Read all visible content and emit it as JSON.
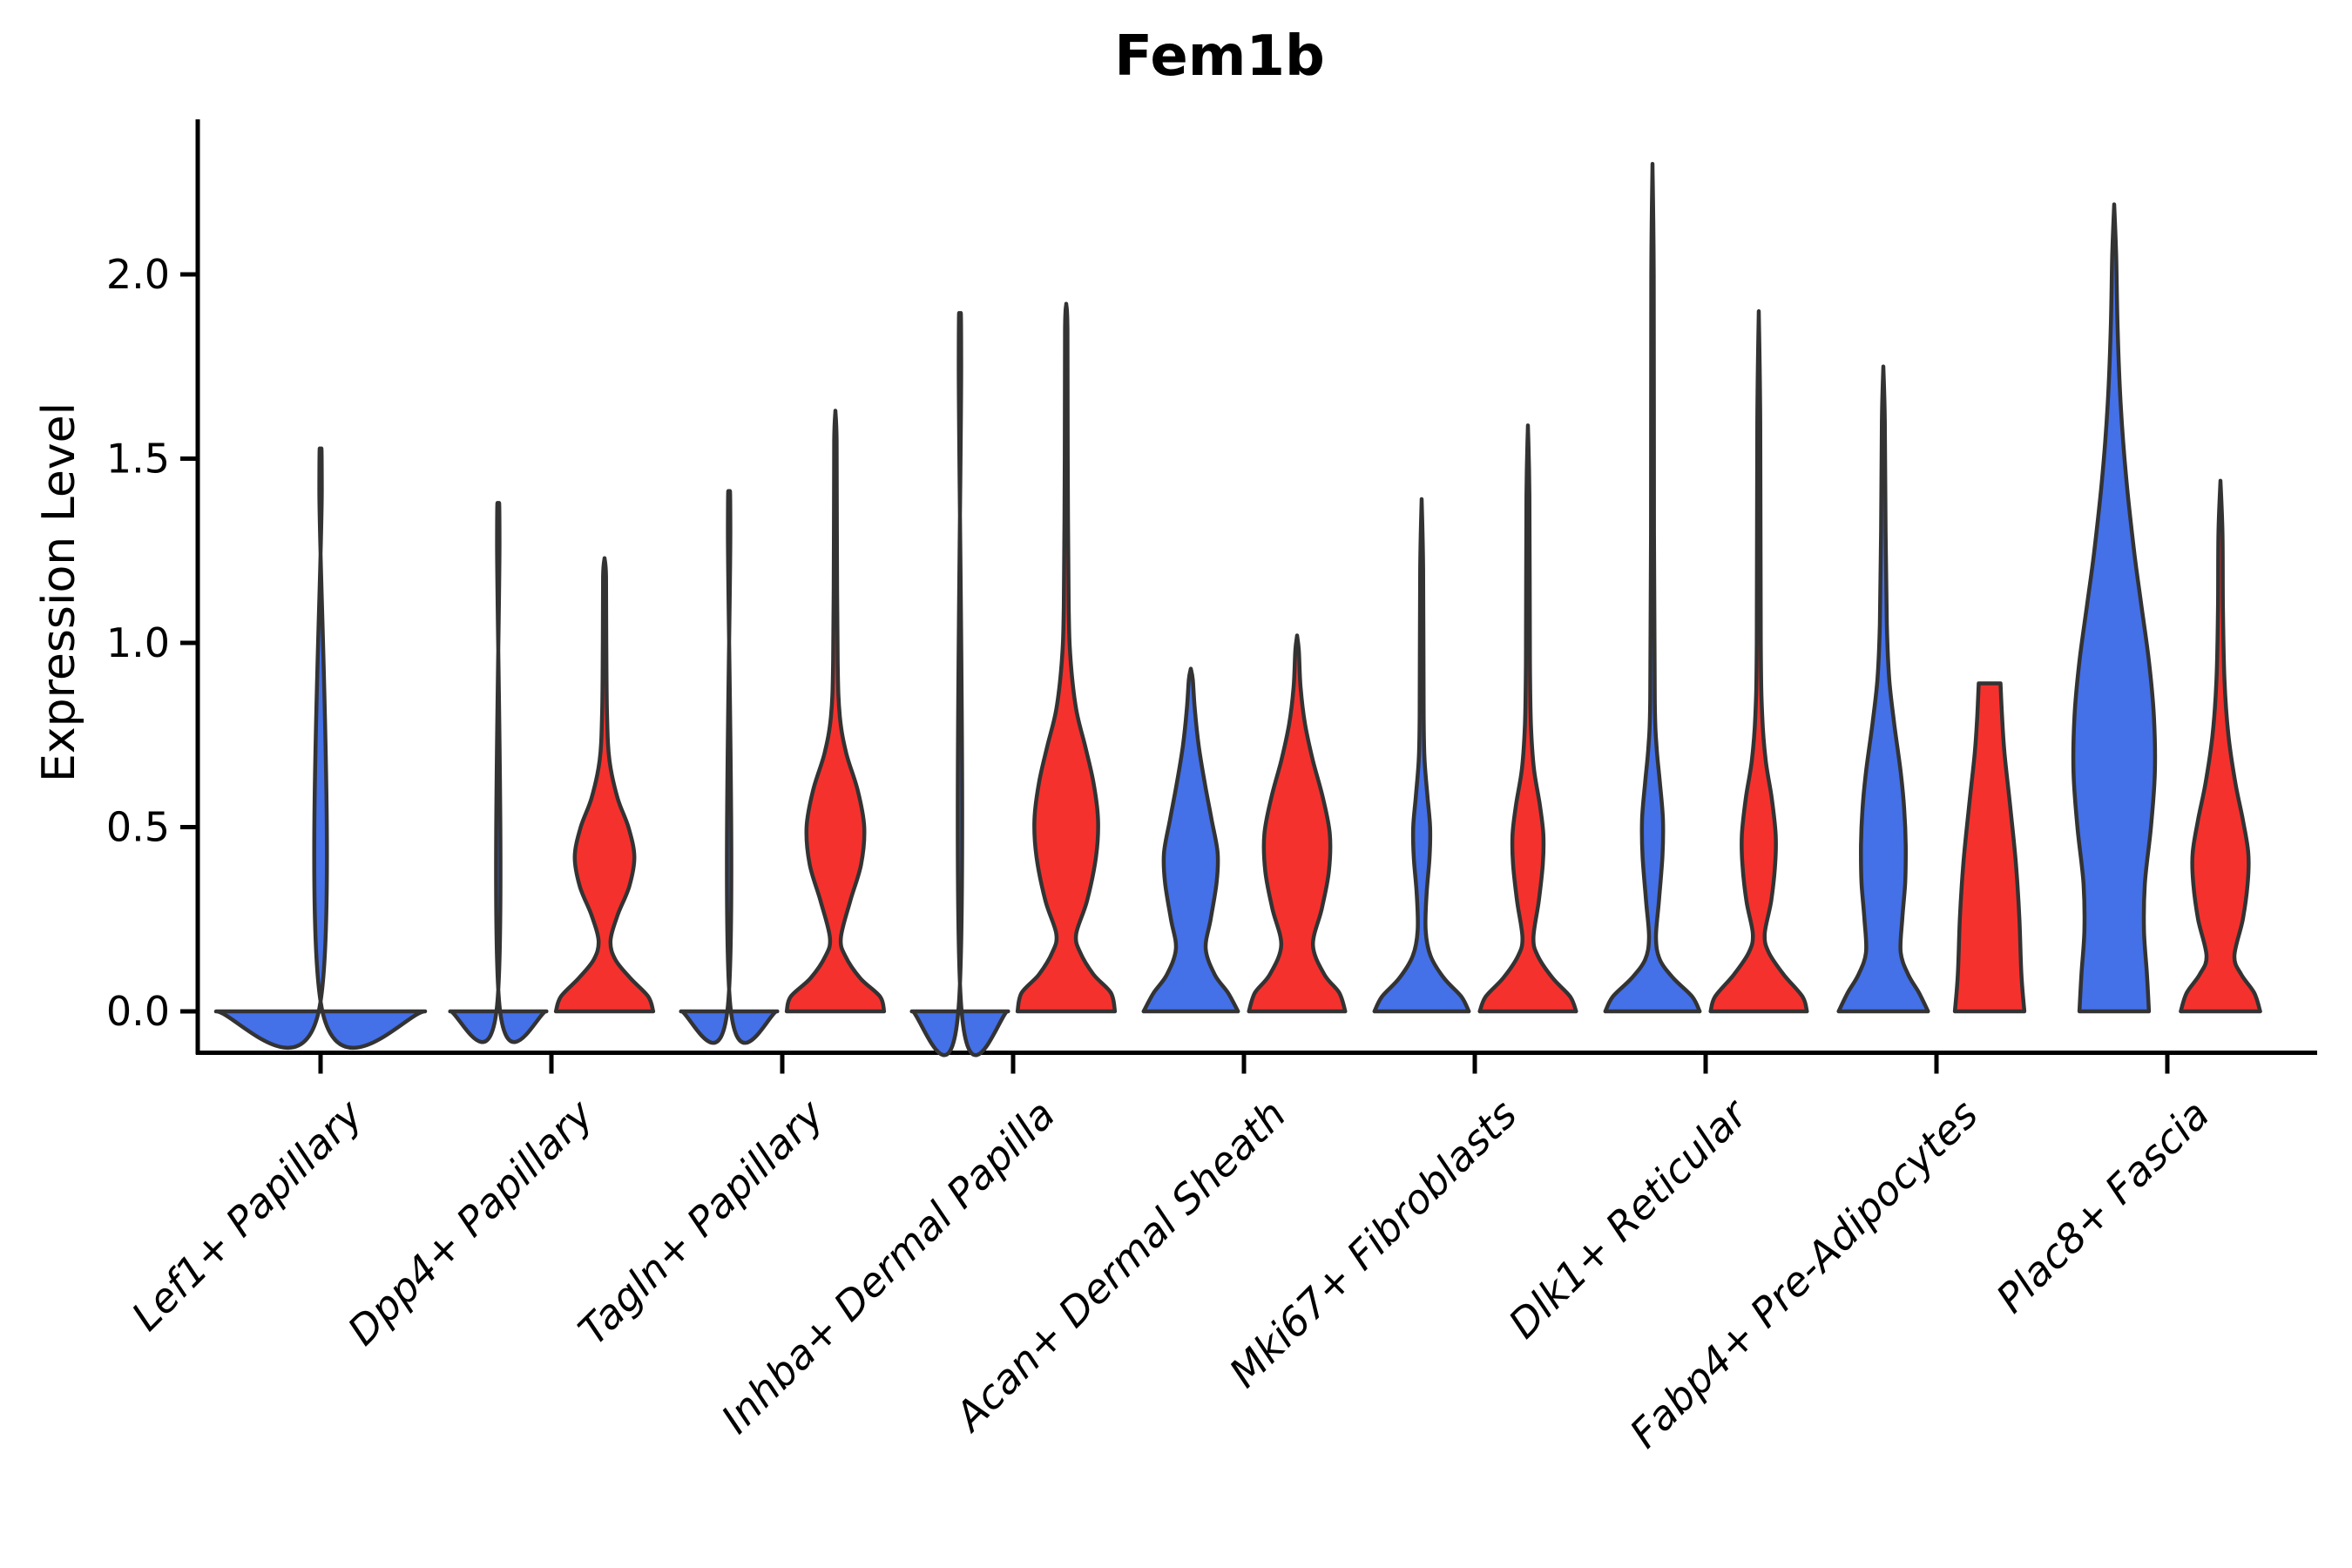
{
  "title": "Fem1b",
  "y_axis_label": "Expression Level",
  "colors": {
    "split_blue": "#4470E8",
    "split_red": "#F5312D",
    "violin_outline": "#333333",
    "axis": "#000000",
    "text": "#000000",
    "background": "#FFFFFF"
  },
  "chart_data": {
    "type": "violin",
    "title": "Fem1b",
    "xlabel": "",
    "ylabel": "Expression Level",
    "ylim": [
      0,
      2.42
    ],
    "yticks": [
      "0.0",
      "0.5",
      "1.0",
      "1.5",
      "2.0"
    ],
    "ytick_values": [
      0.0,
      0.5,
      1.0,
      1.5,
      2.0
    ],
    "grid": false,
    "legend": "none",
    "split_series": [
      {
        "name": "blue",
        "color": "#4470E8"
      },
      {
        "name": "red",
        "color": "#F5312D"
      }
    ],
    "categories": [
      "Lef1+ Papillary",
      "Dpp4+ Papillary",
      "Tagln+ Papillary",
      "Inhba+ Dermal Papilla",
      "Acan+ Dermal Sheath",
      "Mki67+ Fibroblasts",
      "Dlk1+ Reticular",
      "Fabp4+ Pre-Adipocytes",
      "Plac8+ Fascia"
    ],
    "max_expression": {
      "blue": [
        1.43,
        1.3,
        1.33,
        1.78,
        0.93,
        1.39,
        2.3,
        1.75,
        2.19
      ],
      "red": [
        null,
        1.23,
        1.63,
        1.92,
        1.02,
        1.59,
        1.9,
        0.89,
        1.44
      ]
    },
    "violins": [
      {
        "category": "Lef1+ Papillary",
        "blue": {
          "tip": 1.43,
          "full_width": true,
          "profile": [
            [
              0,
              1.0
            ],
            [
              0.008,
              0.012
            ],
            [
              1.42,
              0.012
            ],
            [
              1.43,
              0
            ]
          ]
        },
        "red": null
      },
      {
        "category": "Dpp4+ Papillary",
        "blue": {
          "tip": 1.3,
          "profile": [
            [
              0,
              0.97
            ],
            [
              0.015,
              0.025
            ],
            [
              1.28,
              0.025
            ],
            [
              1.3,
              0
            ]
          ]
        },
        "red": {
          "tip": 1.23,
          "profile": [
            [
              0,
              0.98
            ],
            [
              0.04,
              0.88
            ],
            [
              0.09,
              0.52
            ],
            [
              0.14,
              0.22
            ],
            [
              0.19,
              0.12
            ],
            [
              0.26,
              0.26
            ],
            [
              0.34,
              0.5
            ],
            [
              0.42,
              0.6
            ],
            [
              0.5,
              0.48
            ],
            [
              0.58,
              0.26
            ],
            [
              0.68,
              0.1
            ],
            [
              0.8,
              0.05
            ],
            [
              1.0,
              0.035
            ],
            [
              1.18,
              0.03
            ],
            [
              1.23,
              0
            ]
          ]
        }
      },
      {
        "category": "Tagln+ Papillary",
        "blue": {
          "tip": 1.33,
          "profile": [
            [
              0,
              0.97
            ],
            [
              0.015,
              0.025
            ],
            [
              1.31,
              0.025
            ],
            [
              1.33,
              0
            ]
          ]
        },
        "red": {
          "tip": 1.63,
          "profile": [
            [
              0,
              0.98
            ],
            [
              0.04,
              0.9
            ],
            [
              0.09,
              0.5
            ],
            [
              0.15,
              0.2
            ],
            [
              0.2,
              0.11
            ],
            [
              0.3,
              0.3
            ],
            [
              0.4,
              0.52
            ],
            [
              0.5,
              0.58
            ],
            [
              0.6,
              0.45
            ],
            [
              0.7,
              0.22
            ],
            [
              0.8,
              0.09
            ],
            [
              0.95,
              0.045
            ],
            [
              1.3,
              0.03
            ],
            [
              1.55,
              0.025
            ],
            [
              1.63,
              0
            ]
          ]
        }
      },
      {
        "category": "Inhba+ Dermal Papilla",
        "blue": {
          "tip": 1.78,
          "profile": [
            [
              0,
              0.97
            ],
            [
              0.015,
              0.025
            ],
            [
              1.76,
              0.025
            ],
            [
              1.78,
              0
            ]
          ]
        },
        "red": {
          "tip": 1.92,
          "profile": [
            [
              0,
              0.98
            ],
            [
              0.05,
              0.9
            ],
            [
              0.1,
              0.55
            ],
            [
              0.16,
              0.28
            ],
            [
              0.21,
              0.2
            ],
            [
              0.3,
              0.42
            ],
            [
              0.42,
              0.6
            ],
            [
              0.52,
              0.64
            ],
            [
              0.62,
              0.55
            ],
            [
              0.72,
              0.38
            ],
            [
              0.82,
              0.2
            ],
            [
              0.95,
              0.09
            ],
            [
              1.1,
              0.05
            ],
            [
              1.5,
              0.03
            ],
            [
              1.85,
              0.025
            ],
            [
              1.92,
              0
            ]
          ]
        }
      },
      {
        "category": "Acan+ Dermal Sheath",
        "blue": {
          "tip": 0.93,
          "profile": [
            [
              0,
              0.95
            ],
            [
              0.05,
              0.75
            ],
            [
              0.1,
              0.48
            ],
            [
              0.17,
              0.3
            ],
            [
              0.25,
              0.4
            ],
            [
              0.35,
              0.52
            ],
            [
              0.43,
              0.54
            ],
            [
              0.52,
              0.42
            ],
            [
              0.62,
              0.28
            ],
            [
              0.72,
              0.16
            ],
            [
              0.82,
              0.08
            ],
            [
              0.9,
              0.04
            ],
            [
              0.93,
              0
            ]
          ]
        },
        "red": {
          "tip": 1.02,
          "profile": [
            [
              0,
              0.97
            ],
            [
              0.05,
              0.85
            ],
            [
              0.1,
              0.55
            ],
            [
              0.18,
              0.32
            ],
            [
              0.28,
              0.5
            ],
            [
              0.38,
              0.64
            ],
            [
              0.48,
              0.66
            ],
            [
              0.58,
              0.52
            ],
            [
              0.68,
              0.32
            ],
            [
              0.78,
              0.16
            ],
            [
              0.88,
              0.07
            ],
            [
              0.98,
              0.035
            ],
            [
              1.02,
              0
            ]
          ]
        }
      },
      {
        "category": "Mki67+ Fibroblasts",
        "blue": {
          "tip": 1.39,
          "profile": [
            [
              0,
              0.95
            ],
            [
              0.04,
              0.8
            ],
            [
              0.09,
              0.45
            ],
            [
              0.15,
              0.18
            ],
            [
              0.22,
              0.08
            ],
            [
              0.32,
              0.1
            ],
            [
              0.42,
              0.16
            ],
            [
              0.5,
              0.17
            ],
            [
              0.58,
              0.12
            ],
            [
              0.68,
              0.06
            ],
            [
              0.8,
              0.04
            ],
            [
              1.2,
              0.03
            ],
            [
              1.39,
              0
            ]
          ]
        },
        "red": {
          "tip": 1.59,
          "profile": [
            [
              0,
              0.97
            ],
            [
              0.04,
              0.85
            ],
            [
              0.09,
              0.5
            ],
            [
              0.15,
              0.2
            ],
            [
              0.2,
              0.11
            ],
            [
              0.3,
              0.22
            ],
            [
              0.4,
              0.3
            ],
            [
              0.48,
              0.31
            ],
            [
              0.56,
              0.24
            ],
            [
              0.66,
              0.12
            ],
            [
              0.78,
              0.06
            ],
            [
              0.95,
              0.04
            ],
            [
              1.4,
              0.03
            ],
            [
              1.59,
              0
            ]
          ]
        }
      },
      {
        "category": "Dlk1+ Reticular",
        "blue": {
          "tip": 2.3,
          "profile": [
            [
              0,
              0.95
            ],
            [
              0.04,
              0.8
            ],
            [
              0.09,
              0.42
            ],
            [
              0.14,
              0.15
            ],
            [
              0.2,
              0.07
            ],
            [
              0.3,
              0.13
            ],
            [
              0.42,
              0.2
            ],
            [
              0.52,
              0.21
            ],
            [
              0.62,
              0.15
            ],
            [
              0.72,
              0.08
            ],
            [
              0.85,
              0.045
            ],
            [
              1.3,
              0.03
            ],
            [
              2.0,
              0.025
            ],
            [
              2.3,
              0
            ]
          ]
        },
        "red": {
          "tip": 1.9,
          "profile": [
            [
              0,
              0.97
            ],
            [
              0.04,
              0.88
            ],
            [
              0.1,
              0.5
            ],
            [
              0.16,
              0.2
            ],
            [
              0.21,
              0.12
            ],
            [
              0.3,
              0.25
            ],
            [
              0.4,
              0.33
            ],
            [
              0.48,
              0.34
            ],
            [
              0.58,
              0.26
            ],
            [
              0.68,
              0.14
            ],
            [
              0.8,
              0.07
            ],
            [
              1.0,
              0.04
            ],
            [
              1.6,
              0.03
            ],
            [
              1.9,
              0
            ]
          ]
        }
      },
      {
        "category": "Fabp4+ Pre-Adipocytes",
        "blue": {
          "tip": 1.75,
          "profile": [
            [
              0,
              0.9
            ],
            [
              0.05,
              0.72
            ],
            [
              0.1,
              0.5
            ],
            [
              0.16,
              0.35
            ],
            [
              0.25,
              0.38
            ],
            [
              0.35,
              0.44
            ],
            [
              0.45,
              0.45
            ],
            [
              0.55,
              0.42
            ],
            [
              0.65,
              0.35
            ],
            [
              0.78,
              0.22
            ],
            [
              0.9,
              0.12
            ],
            [
              1.05,
              0.07
            ],
            [
              1.3,
              0.045
            ],
            [
              1.6,
              0.03
            ],
            [
              1.75,
              0
            ]
          ]
        },
        "red": {
          "tip": 0.89,
          "flat_top": true,
          "profile": [
            [
              0,
              0.7
            ],
            [
              0.1,
              0.64
            ],
            [
              0.25,
              0.6
            ],
            [
              0.4,
              0.53
            ],
            [
              0.55,
              0.42
            ],
            [
              0.7,
              0.3
            ],
            [
              0.8,
              0.25
            ],
            [
              0.89,
              0.22
            ]
          ]
        }
      },
      {
        "category": "Plac8+ Fascia",
        "blue": {
          "tip": 2.19,
          "profile": [
            [
              0,
              0.7
            ],
            [
              0.1,
              0.66
            ],
            [
              0.22,
              0.6
            ],
            [
              0.35,
              0.62
            ],
            [
              0.5,
              0.74
            ],
            [
              0.65,
              0.82
            ],
            [
              0.8,
              0.8
            ],
            [
              0.95,
              0.7
            ],
            [
              1.1,
              0.55
            ],
            [
              1.25,
              0.4
            ],
            [
              1.45,
              0.24
            ],
            [
              1.65,
              0.13
            ],
            [
              1.85,
              0.07
            ],
            [
              2.05,
              0.04
            ],
            [
              2.19,
              0
            ]
          ]
        },
        "red": {
          "tip": 1.44,
          "profile": [
            [
              0,
              0.8
            ],
            [
              0.05,
              0.68
            ],
            [
              0.1,
              0.42
            ],
            [
              0.15,
              0.28
            ],
            [
              0.25,
              0.45
            ],
            [
              0.35,
              0.55
            ],
            [
              0.43,
              0.56
            ],
            [
              0.52,
              0.45
            ],
            [
              0.62,
              0.3
            ],
            [
              0.75,
              0.16
            ],
            [
              0.9,
              0.08
            ],
            [
              1.1,
              0.05
            ],
            [
              1.3,
              0.04
            ],
            [
              1.44,
              0
            ]
          ]
        }
      }
    ]
  }
}
